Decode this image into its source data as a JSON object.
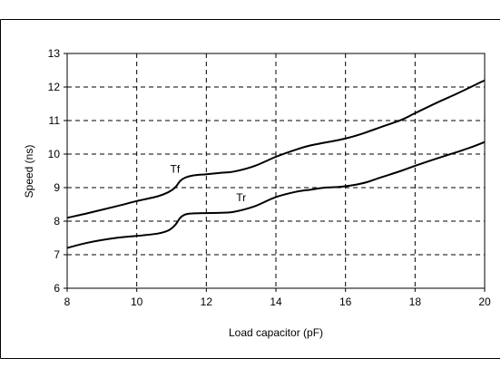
{
  "chart_data": {
    "type": "line",
    "title": "",
    "xlabel": "Load capacitor (pF)",
    "ylabel": "Speed (ns)",
    "xlim": [
      8,
      20
    ],
    "ylim": [
      6,
      13
    ],
    "xticks": [
      8,
      10,
      12,
      14,
      16,
      18,
      20
    ],
    "yticks": [
      6,
      7,
      8,
      9,
      10,
      11,
      12,
      13
    ],
    "grid": "dashed",
    "legend": "none",
    "series": [
      {
        "name": "Tf",
        "x": [
          8,
          8.6,
          9.4,
          10,
          10.6,
          10.9,
          11.1,
          11.25,
          11.4,
          11.6,
          12,
          12.4,
          12.8,
          13.4,
          14,
          14.6,
          15,
          15.4,
          15.8,
          16.2,
          16.6,
          17,
          17.6,
          18,
          18.6,
          19.2,
          19.6,
          20
        ],
        "y": [
          8.1,
          8.24,
          8.44,
          8.6,
          8.74,
          8.86,
          9.0,
          9.2,
          9.3,
          9.36,
          9.4,
          9.44,
          9.48,
          9.65,
          9.92,
          10.14,
          10.26,
          10.34,
          10.42,
          10.52,
          10.65,
          10.8,
          11.02,
          11.22,
          11.52,
          11.8,
          12.0,
          12.2
        ]
      },
      {
        "name": "Tr",
        "x": [
          8,
          8.6,
          9.4,
          10,
          10.6,
          10.9,
          11.1,
          11.25,
          11.4,
          11.6,
          12,
          12.4,
          12.8,
          13.4,
          14,
          14.6,
          15,
          15.4,
          15.8,
          16.2,
          16.6,
          17,
          17.6,
          18,
          18.6,
          19.2,
          19.6,
          20
        ],
        "y": [
          7.2,
          7.36,
          7.5,
          7.56,
          7.63,
          7.72,
          7.88,
          8.1,
          8.2,
          8.23,
          8.24,
          8.25,
          8.28,
          8.45,
          8.72,
          8.88,
          8.94,
          9.0,
          9.02,
          9.07,
          9.16,
          9.3,
          9.5,
          9.65,
          9.86,
          10.06,
          10.2,
          10.36
        ]
      }
    ],
    "annotations": [
      {
        "text": "Tf",
        "x": 11.1,
        "y": 9.45
      },
      {
        "text": "Tr",
        "x": 13.0,
        "y": 8.6
      }
    ]
  }
}
